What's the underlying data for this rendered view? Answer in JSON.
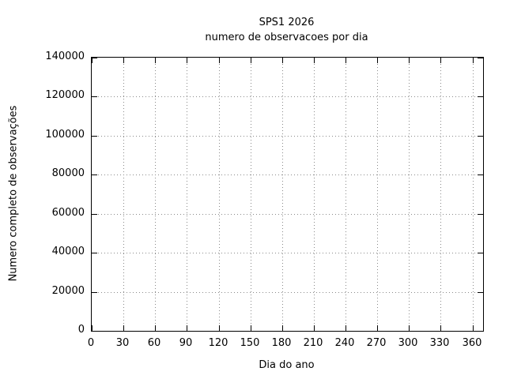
{
  "chart_data": {
    "type": "line",
    "title": "SPS1 2026",
    "subtitle": "numero de observacoes por dia",
    "xlabel": "Dia do ano",
    "ylabel": "Numero completo de observações",
    "xlim": [
      0,
      370
    ],
    "ylim": [
      0,
      140000
    ],
    "xticks": [
      0,
      30,
      60,
      90,
      120,
      150,
      180,
      210,
      240,
      270,
      300,
      330,
      360
    ],
    "yticks": [
      0,
      20000,
      40000,
      60000,
      80000,
      100000,
      120000,
      140000
    ],
    "grid": true,
    "grid_style": "dotted",
    "legend": "none",
    "series": []
  },
  "colors": {
    "background": "#ffffff",
    "text": "#000000",
    "border": "#000000",
    "grid": "#8a8a8a"
  }
}
